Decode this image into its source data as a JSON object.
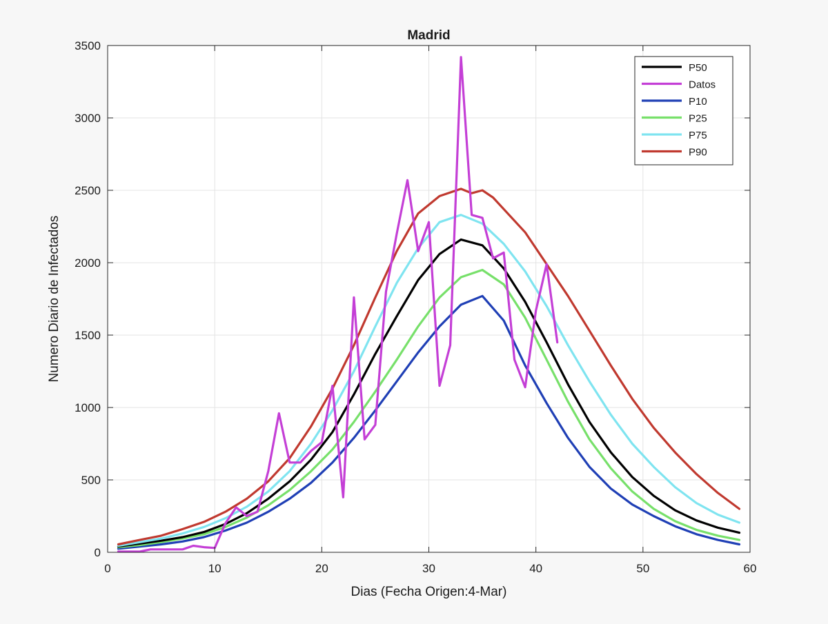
{
  "chart_data": {
    "type": "line",
    "title": "Madrid",
    "xlabel": "Dias (Fecha Origen:4-Mar)",
    "ylabel": "Numero Diario de Infectados",
    "xlim": [
      0,
      60
    ],
    "ylim": [
      0,
      3500
    ],
    "xticks": [
      0,
      10,
      20,
      30,
      40,
      50,
      60
    ],
    "yticks": [
      0,
      500,
      1000,
      1500,
      2000,
      2500,
      3000,
      3500
    ],
    "grid": true,
    "legend_position": "top-right",
    "series": [
      {
        "name": "P50",
        "color": "#000000",
        "x": [
          1,
          3,
          5,
          7,
          9,
          11,
          13,
          15,
          17,
          19,
          21,
          23,
          25,
          27,
          29,
          31,
          33,
          35,
          37,
          39,
          41,
          43,
          45,
          47,
          49,
          51,
          53,
          55,
          57,
          59
        ],
        "values": [
          40,
          60,
          80,
          105,
          140,
          195,
          270,
          370,
          490,
          640,
          830,
          1090,
          1370,
          1630,
          1880,
          2060,
          2160,
          2120,
          1960,
          1730,
          1450,
          1160,
          900,
          690,
          520,
          390,
          290,
          220,
          170,
          135
        ]
      },
      {
        "name": "Datos",
        "color": "#c43fd6",
        "x": [
          1,
          2,
          3,
          4,
          5,
          6,
          7,
          8,
          9,
          10,
          11,
          12,
          13,
          14,
          15,
          16,
          17,
          18,
          19,
          20,
          21,
          22,
          23,
          24,
          25,
          26,
          27,
          28,
          29,
          30,
          31,
          32,
          33,
          34,
          35,
          36,
          37,
          38,
          39,
          40,
          41,
          42
        ],
        "values": [
          5,
          5,
          5,
          20,
          20,
          20,
          20,
          45,
          35,
          30,
          200,
          310,
          250,
          280,
          560,
          960,
          620,
          620,
          700,
          760,
          1150,
          380,
          1760,
          780,
          880,
          1800,
          2200,
          2570,
          2080,
          2280,
          1150,
          1430,
          3420,
          2330,
          2310,
          2030,
          2070,
          1330,
          1140,
          1670,
          1990,
          1450
        ]
      },
      {
        "name": "P10",
        "color": "#1f3fb5",
        "x": [
          1,
          3,
          5,
          7,
          9,
          11,
          13,
          15,
          17,
          19,
          21,
          23,
          25,
          27,
          29,
          31,
          33,
          35,
          37,
          39,
          41,
          43,
          45,
          47,
          49,
          51,
          53,
          55,
          57,
          59
        ],
        "values": [
          25,
          40,
          55,
          75,
          105,
          150,
          205,
          280,
          370,
          480,
          620,
          790,
          980,
          1180,
          1380,
          1560,
          1710,
          1770,
          1600,
          1290,
          1030,
          790,
          590,
          440,
          330,
          250,
          180,
          125,
          85,
          55
        ]
      },
      {
        "name": "P25",
        "color": "#77e06a",
        "x": [
          1,
          3,
          5,
          7,
          9,
          11,
          13,
          15,
          17,
          19,
          21,
          23,
          25,
          27,
          29,
          31,
          33,
          35,
          37,
          39,
          41,
          43,
          45,
          47,
          49,
          51,
          53,
          55,
          57,
          59
        ],
        "values": [
          35,
          50,
          70,
          95,
          125,
          175,
          240,
          325,
          430,
          560,
          710,
          900,
          1110,
          1330,
          1560,
          1760,
          1900,
          1950,
          1850,
          1620,
          1330,
          1040,
          780,
          580,
          420,
          300,
          215,
          155,
          115,
          85
        ]
      },
      {
        "name": "P75",
        "color": "#7fe4f0",
        "x": [
          1,
          3,
          5,
          7,
          9,
          11,
          13,
          15,
          17,
          19,
          21,
          23,
          25,
          27,
          29,
          31,
          33,
          35,
          37,
          39,
          41,
          43,
          45,
          47,
          49,
          51,
          53,
          55,
          57,
          59
        ],
        "values": [
          45,
          70,
          95,
          130,
          175,
          235,
          315,
          420,
          560,
          750,
          980,
          1250,
          1560,
          1860,
          2100,
          2280,
          2330,
          2270,
          2130,
          1940,
          1700,
          1430,
          1180,
          950,
          750,
          590,
          450,
          340,
          260,
          205
        ]
      },
      {
        "name": "P90",
        "color": "#c0392f",
        "x": [
          1,
          3,
          5,
          7,
          9,
          11,
          13,
          15,
          17,
          19,
          21,
          23,
          25,
          27,
          29,
          31,
          33,
          34,
          35,
          36,
          37,
          39,
          41,
          43,
          45,
          47,
          49,
          51,
          53,
          55,
          57,
          59
        ],
        "values": [
          55,
          85,
          115,
          160,
          210,
          280,
          370,
          490,
          650,
          870,
          1130,
          1430,
          1760,
          2080,
          2340,
          2460,
          2510,
          2480,
          2500,
          2450,
          2370,
          2210,
          1990,
          1770,
          1530,
          1290,
          1060,
          860,
          690,
          540,
          410,
          300
        ]
      }
    ]
  }
}
